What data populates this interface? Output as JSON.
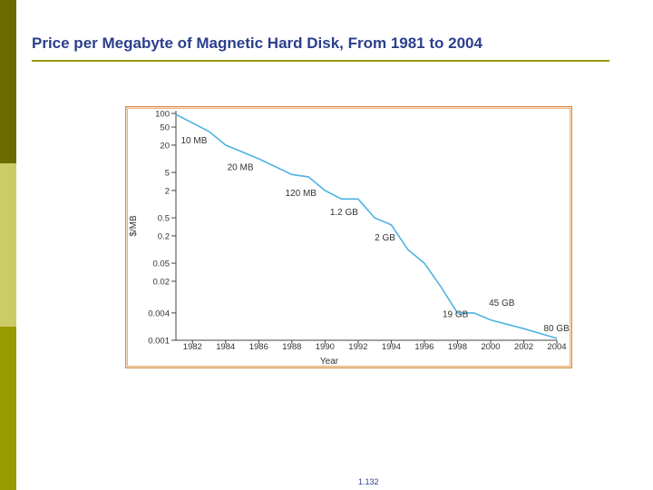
{
  "slide": {
    "title": "Price per Megabyte of Magnetic Hard Disk, From 1981 to 2004",
    "page_number": "1.132"
  },
  "colors": {
    "title": "#2b3f8c",
    "accent": "#999900",
    "line": "#4fb3e0",
    "frame": "#d88a3a"
  },
  "chart_data": {
    "type": "line",
    "title": "",
    "xlabel": "Year",
    "ylabel": "$/MB",
    "y_scale": "log",
    "x_ticks": [
      "1982",
      "1984",
      "1986",
      "1988",
      "1990",
      "1992",
      "1994",
      "1996",
      "1998",
      "2000",
      "2002",
      "2004"
    ],
    "y_ticks": [
      "100",
      "50",
      "20",
      "5",
      "2",
      "0.5",
      "0.2",
      "0.05",
      "0.02",
      "0.004",
      "0.001"
    ],
    "xlim": [
      1981,
      2004
    ],
    "ylim": [
      0.001,
      100
    ],
    "series": [
      {
        "x": [
          1981,
          1983,
          1984,
          1986,
          1988,
          1989,
          1990,
          1991,
          1992,
          1993,
          1994,
          1995,
          1996,
          1997,
          1998,
          1999,
          2000,
          2002,
          2004
        ],
        "y": [
          95,
          40,
          20,
          10,
          4.5,
          4,
          2,
          1.3,
          1.3,
          0.5,
          0.35,
          0.1,
          0.05,
          0.015,
          0.004,
          0.004,
          0.0028,
          0.0018,
          0.0011
        ]
      }
    ],
    "annotations": [
      {
        "text": "10 MB",
        "x": 1981.3,
        "y": 22
      },
      {
        "text": "20 MB",
        "x": 1984.1,
        "y": 5.6
      },
      {
        "text": "120 MB",
        "x": 1987.6,
        "y": 1.5
      },
      {
        "text": "1.2 GB",
        "x": 1990.3,
        "y": 0.57
      },
      {
        "text": "2 GB",
        "x": 1993.0,
        "y": 0.16
      },
      {
        "text": "19 GB",
        "x": 1997.1,
        "y": 0.0032
      },
      {
        "text": "45 GB",
        "x": 1999.9,
        "y": 0.0058
      },
      {
        "text": "80 GB",
        "x": 2003.2,
        "y": 0.0016
      }
    ]
  }
}
